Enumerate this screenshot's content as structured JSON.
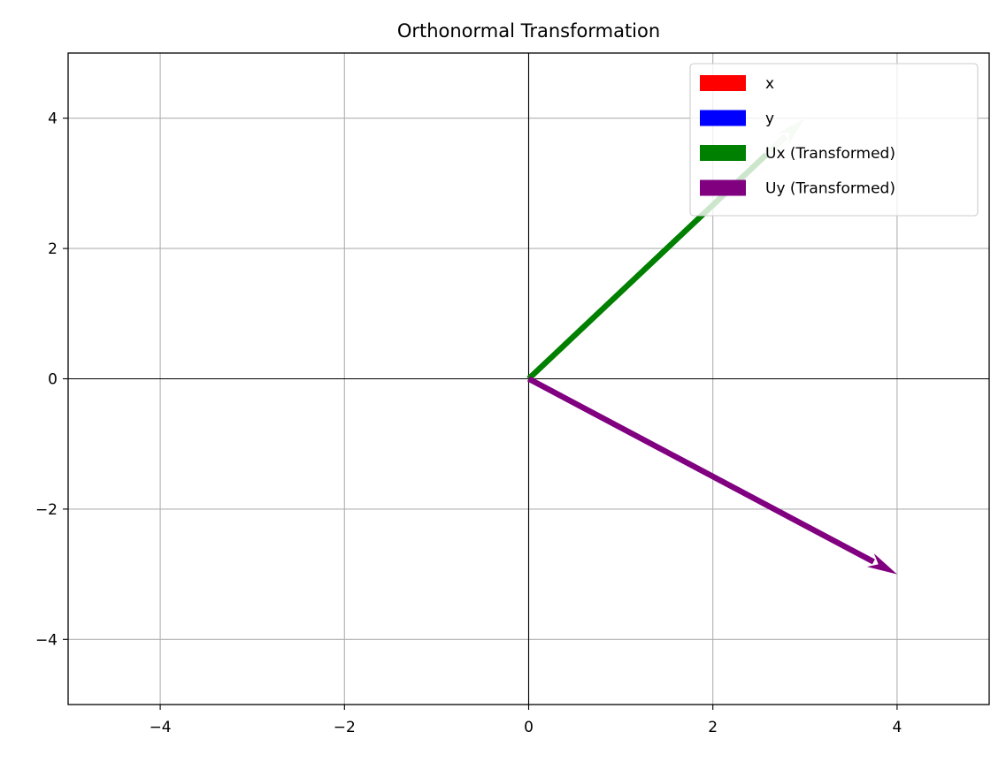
{
  "chart_data": {
    "type": "quiver",
    "title": "Orthonormal Transformation",
    "xlabel": "",
    "ylabel": "",
    "xlim": [
      -5,
      5
    ],
    "ylim": [
      -5,
      5
    ],
    "grid": true,
    "legend_position": "top-right",
    "xticks": [
      -4,
      -2,
      0,
      2,
      4
    ],
    "yticks": [
      -4,
      -2,
      0,
      2,
      4
    ],
    "xtick_labels": [
      "−4",
      "−2",
      "0",
      "2",
      "4"
    ],
    "ytick_labels": [
      "−4",
      "−2",
      "0",
      "2",
      "4"
    ],
    "series": [
      {
        "name": "x",
        "color": "#ff0000",
        "origin": [
          0,
          0
        ],
        "vector": [
          0,
          0
        ],
        "alpha": 1.0
      },
      {
        "name": "y",
        "color": "#0000ff",
        "origin": [
          0,
          0
        ],
        "vector": [
          0,
          0
        ],
        "alpha": 1.0
      },
      {
        "name": "Ux (Transformed)",
        "color": "#008000",
        "origin": [
          0,
          0
        ],
        "vector": [
          3,
          4
        ],
        "alpha": 1.0,
        "head_alpha": 0.18
      },
      {
        "name": "Uy (Transformed)",
        "color": "#800080",
        "origin": [
          0,
          0
        ],
        "vector": [
          4,
          -3
        ],
        "alpha": 1.0
      }
    ]
  }
}
